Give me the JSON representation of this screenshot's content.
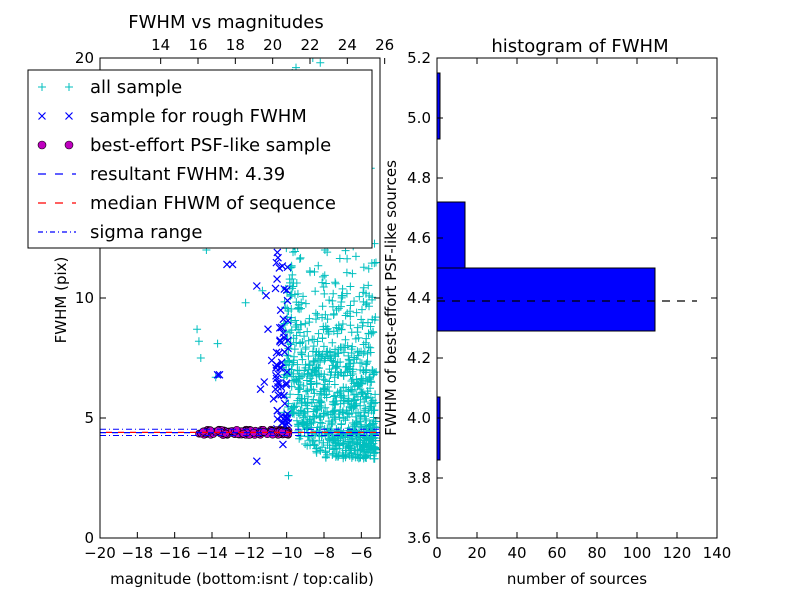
{
  "chart_data": [
    {
      "type": "scatter",
      "title": "FWHM vs magnitudes",
      "xlabel": "magnitude (bottom:isnt / top:calib)",
      "ylabel": "FWHM (pix)",
      "xlim": [
        -20,
        -5
      ],
      "ylim": [
        0,
        20
      ],
      "x_ticks": [
        "−20",
        "−18",
        "−16",
        "−14",
        "−12",
        "−10",
        "−8",
        "−6"
      ],
      "x_tick_values": [
        -20,
        -18,
        -16,
        -14,
        -12,
        -10,
        -8,
        -6
      ],
      "top_x_ticks": [
        "14",
        "16",
        "18",
        "20",
        "22",
        "24",
        "26"
      ],
      "top_x_tick_values": [
        -16.75,
        -14.75,
        -12.75,
        -10.75,
        -8.75,
        -6.75,
        -4.75
      ],
      "y_ticks": [
        "0",
        "5",
        "10",
        "20"
      ],
      "y_tick_values": [
        0,
        5,
        10,
        20
      ],
      "series": [
        {
          "name": "all sample",
          "marker": "+",
          "color": "#00bfbf",
          "description": "broad cloud concentrated near magnitude -9 to -6, FWHM 3 to 20",
          "points": [
            [
              -14.8,
              8.7
            ],
            [
              -14.7,
              8.2
            ],
            [
              -14.6,
              7.5
            ],
            [
              -14.3,
              12.0
            ],
            [
              -13.7,
              8.1
            ],
            [
              -13.8,
              6.7
            ],
            [
              -12.2,
              9.8
            ],
            [
              -11.8,
              14.5
            ],
            [
              -11.3,
              10.3
            ],
            [
              -10.2,
              7.1
            ],
            [
              -9.9,
              2.6
            ],
            [
              -9.5,
              19.6
            ],
            [
              -8.6,
              20.0
            ],
            [
              -8.2,
              19.8
            ]
          ]
        },
        {
          "name": "sample for rough FWHM",
          "marker": "x",
          "color": "#0000ff",
          "points": [
            [
              -13.7,
              6.8
            ],
            [
              -13.6,
              6.8
            ],
            [
              -13.2,
              11.4
            ],
            [
              -12.9,
              11.4
            ],
            [
              -11.6,
              3.2
            ],
            [
              -11.6,
              10.5
            ],
            [
              -11.4,
              6.2
            ],
            [
              -11.2,
              6.5
            ],
            [
              -11.1,
              10.1
            ],
            [
              -11.0,
              8.7
            ],
            [
              -10.8,
              7.4
            ],
            [
              -10.7,
              5.8
            ],
            [
              -10.6,
              6.2
            ],
            [
              -10.5,
              11.9
            ],
            [
              -10.4,
              7.7
            ],
            [
              -10.2,
              3.9
            ],
            [
              -10.1,
              5.6
            ],
            [
              -10.0,
              4.5
            ],
            [
              -9.9,
              4.8
            ]
          ]
        },
        {
          "name": "best-effort PSF-like sample",
          "marker": "o",
          "color": "#bf00bf",
          "x_range": [
            -14.7,
            -9.9
          ],
          "y_center": 4.4
        }
      ],
      "lines": [
        {
          "name": "resultant FWHM: 4.39",
          "y": 4.39,
          "style": "dashed",
          "color": "#0000ff"
        },
        {
          "name": "median FHWM of sequence",
          "y": 4.4,
          "style": "dashed",
          "color": "#ff0000"
        },
        {
          "name": "sigma range",
          "y": [
            4.27,
            4.53
          ],
          "style": "dashdot",
          "color": "#0000ff"
        }
      ],
      "legend": "top-left"
    },
    {
      "type": "bar",
      "orientation": "horizontal",
      "title": "histogram of FWHM",
      "xlabel": "number of sources",
      "ylabel": "FWHM of best-effort PSF-like sources",
      "xlim": [
        0,
        140
      ],
      "ylim": [
        3.6,
        5.2
      ],
      "x_ticks": [
        "0",
        "20",
        "40",
        "60",
        "80",
        "100",
        "120",
        "140"
      ],
      "x_tick_values": [
        0,
        20,
        40,
        60,
        80,
        100,
        120,
        140
      ],
      "y_ticks": [
        "3.6",
        "3.8",
        "4.0",
        "4.2",
        "4.4",
        "4.6",
        "4.8",
        "5.0",
        "5.2"
      ],
      "y_tick_values": [
        3.6,
        3.8,
        4.0,
        4.2,
        4.4,
        4.6,
        4.8,
        5.0,
        5.2
      ],
      "bins": [
        {
          "from": 3.86,
          "to": 4.07,
          "count": 1
        },
        {
          "from": 4.07,
          "to": 4.29,
          "count": 0
        },
        {
          "from": 4.29,
          "to": 4.5,
          "count": 109
        },
        {
          "from": 4.5,
          "to": 4.72,
          "count": 14
        },
        {
          "from": 4.72,
          "to": 4.93,
          "count": 0
        },
        {
          "from": 4.93,
          "to": 5.15,
          "count": 1
        }
      ],
      "bar_color": "#0000ff",
      "reference_line": {
        "y": 4.39,
        "style": "dashed",
        "color": "#000000"
      }
    }
  ],
  "legend_items": [
    {
      "label": "all sample"
    },
    {
      "label": "sample for rough FWHM"
    },
    {
      "label": "best-effort PSF-like sample"
    },
    {
      "label": "resultant FWHM: 4.39"
    },
    {
      "label": "median FHWM of sequence"
    },
    {
      "label": "sigma range"
    }
  ]
}
